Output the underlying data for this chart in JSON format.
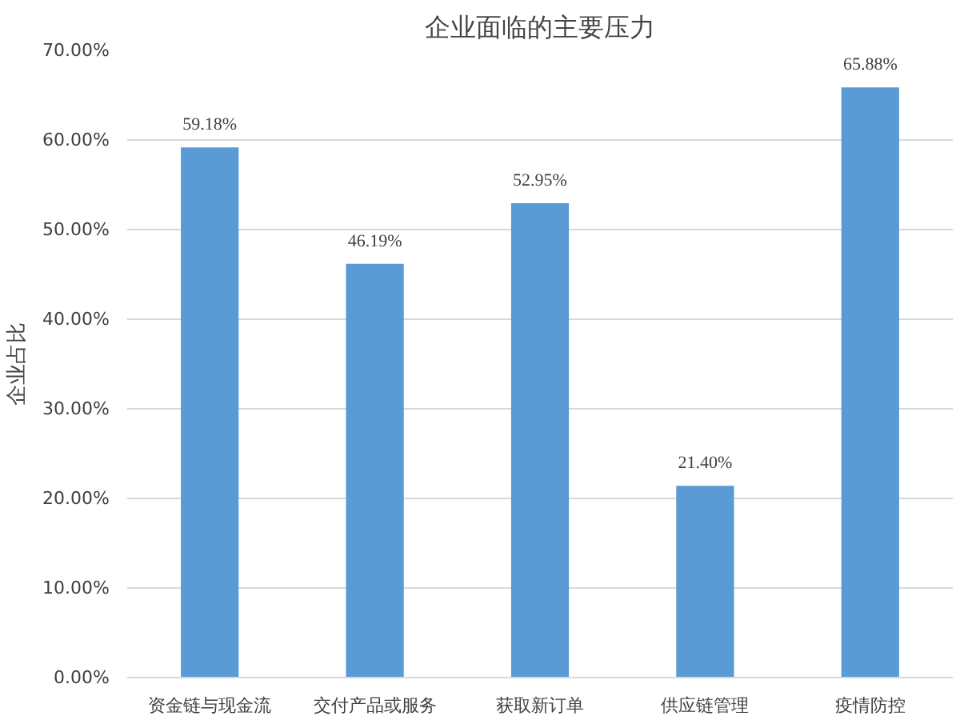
{
  "chart_data": {
    "type": "bar",
    "title": "企业面临的主要压力",
    "ylabel": "企业占比",
    "categories": [
      "资金链与现金流",
      "交付产品或服务",
      "获取新订单",
      "供应链管理",
      "疫情防控"
    ],
    "values": [
      59.18,
      46.19,
      52.95,
      21.4,
      65.88
    ],
    "value_labels": [
      "59.18%",
      "46.19%",
      "52.95%",
      "21.40%",
      "65.88%"
    ],
    "color": "#5b9bd5",
    "ylim": [
      0,
      70
    ],
    "yticks": [
      {
        "value": 0,
        "label": "0.00%"
      },
      {
        "value": 10,
        "label": "10.00%"
      },
      {
        "value": 20,
        "label": "20.00%"
      },
      {
        "value": 30,
        "label": "30.00%"
      },
      {
        "value": 40,
        "label": "40.00%"
      },
      {
        "value": 50,
        "label": "50.00%"
      },
      {
        "value": 60,
        "label": "60.00%"
      },
      {
        "value": 70,
        "label": "70.00%"
      }
    ],
    "grid": "y"
  }
}
